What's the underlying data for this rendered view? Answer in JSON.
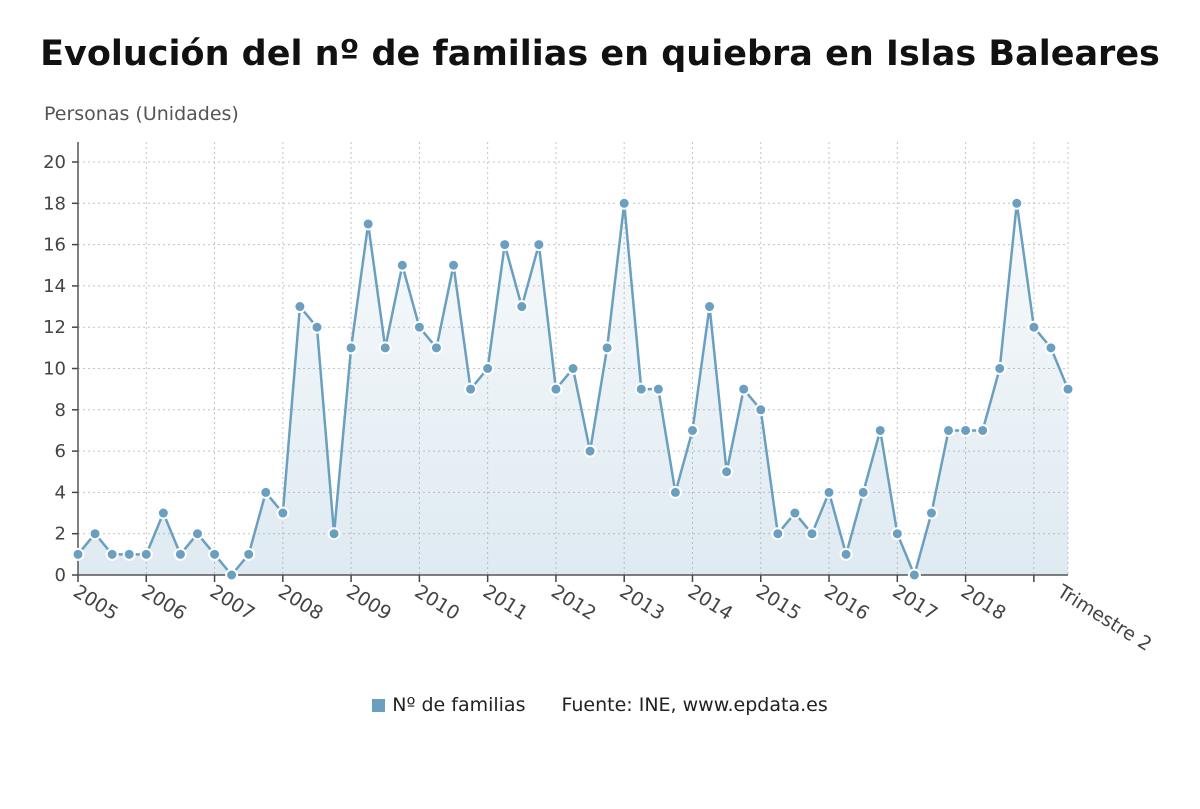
{
  "chart_data": {
    "type": "area",
    "title": "Evolución del nº de familias en quiebra en Islas Baleares",
    "ylabel": "Personas (Unidades)",
    "xlabel": "Trimestre 2",
    "ylim": [
      0,
      20
    ],
    "yticks": [
      0,
      2,
      4,
      6,
      8,
      10,
      12,
      14,
      16,
      18,
      20
    ],
    "x_tick_labels": [
      "2005",
      "2006",
      "2007",
      "2008",
      "2009",
      "2010",
      "2011",
      "2012",
      "2013",
      "2014",
      "2015",
      "2016",
      "2017",
      "2018"
    ],
    "grid": true,
    "series": [
      {
        "name": "Nº de familias",
        "color": "#6a9fc0",
        "values": [
          1,
          2,
          1,
          1,
          1,
          3,
          1,
          2,
          1,
          0,
          1,
          4,
          3,
          13,
          12,
          2,
          11,
          17,
          11,
          15,
          12,
          11,
          15,
          9,
          10,
          16,
          13,
          16,
          9,
          10,
          6,
          11,
          18,
          9,
          9,
          4,
          7,
          13,
          5,
          9,
          8,
          2,
          3,
          2,
          4,
          1,
          4,
          7,
          2,
          0,
          3,
          7,
          7,
          7,
          10,
          18,
          12,
          11,
          9
        ]
      }
    ]
  },
  "legend": {
    "label": "Nº de familias",
    "color": "#6a9fc0",
    "source": "Fuente: INE, www.epdata.es"
  }
}
